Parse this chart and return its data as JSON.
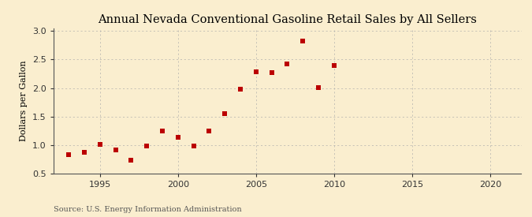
{
  "title": "Annual Nevada Conventional Gasoline Retail Sales by All Sellers",
  "ylabel": "Dollars per Gallon",
  "source": "Source: U.S. Energy Information Administration",
  "x_years": [
    1993,
    1994,
    1995,
    1996,
    1997,
    1998,
    1999,
    2000,
    2001,
    2002,
    2003,
    2004,
    2005,
    2006,
    2007,
    2008,
    2009,
    2010
  ],
  "y_values": [
    0.83,
    0.87,
    1.01,
    0.91,
    0.74,
    0.99,
    1.25,
    1.13,
    0.98,
    1.25,
    1.55,
    1.98,
    2.29,
    2.27,
    2.42,
    2.82,
    2.01,
    2.4
  ],
  "marker_color": "#bb0000",
  "marker": "s",
  "marker_size": 4,
  "xlim": [
    1992,
    2022
  ],
  "ylim": [
    0.5,
    3.05
  ],
  "xticks": [
    1995,
    2000,
    2005,
    2010,
    2015,
    2020
  ],
  "yticks": [
    0.5,
    1.0,
    1.5,
    2.0,
    2.5,
    3.0
  ],
  "background_color": "#faeecf",
  "grid_color": "#aaaaaa",
  "title_fontsize": 10.5,
  "label_fontsize": 8,
  "tick_fontsize": 8,
  "source_fontsize": 7
}
